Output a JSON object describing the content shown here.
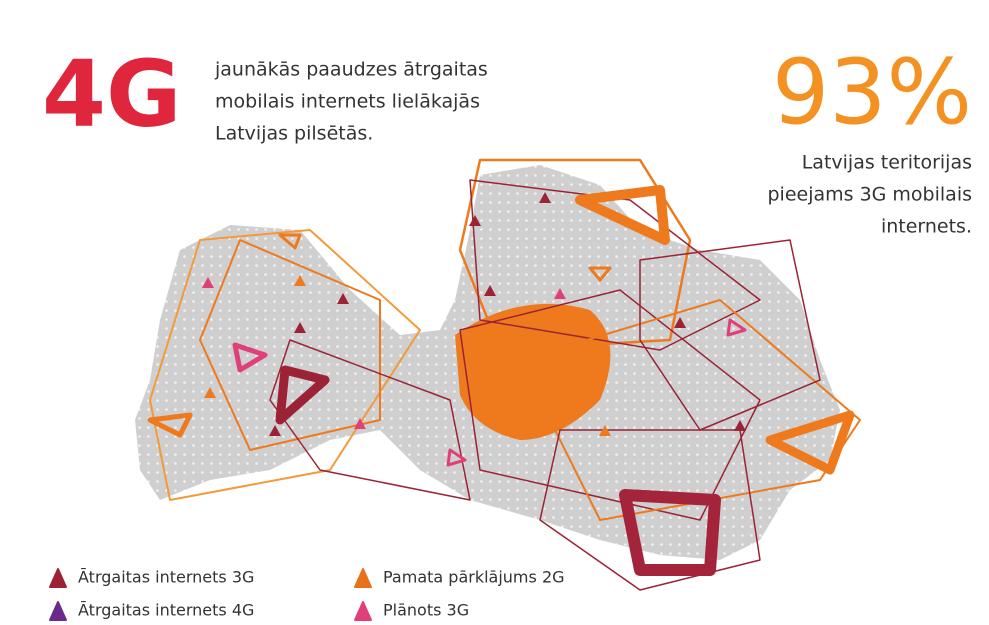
{
  "header": {
    "left_big": "4G",
    "left_lines": [
      "jaunākās paaudzes ātrgaitas",
      "mobilais internets lielākajās",
      "Latvijas pilsētās."
    ],
    "right_big": "93%",
    "right_lines": [
      "Latvijas teritorijas",
      "pieejams 3G mobilais",
      "internets."
    ]
  },
  "legend": [
    {
      "label": "Ātrgaitas internets 3G",
      "color": "#9b2335"
    },
    {
      "label": "Ātrgaitas internets 4G",
      "color": "#6a2a8c"
    },
    {
      "label": "Pamata pārklājums 2G",
      "color": "#e8711c"
    },
    {
      "label": "Plānots 3G",
      "color": "#e0407a"
    }
  ]
}
